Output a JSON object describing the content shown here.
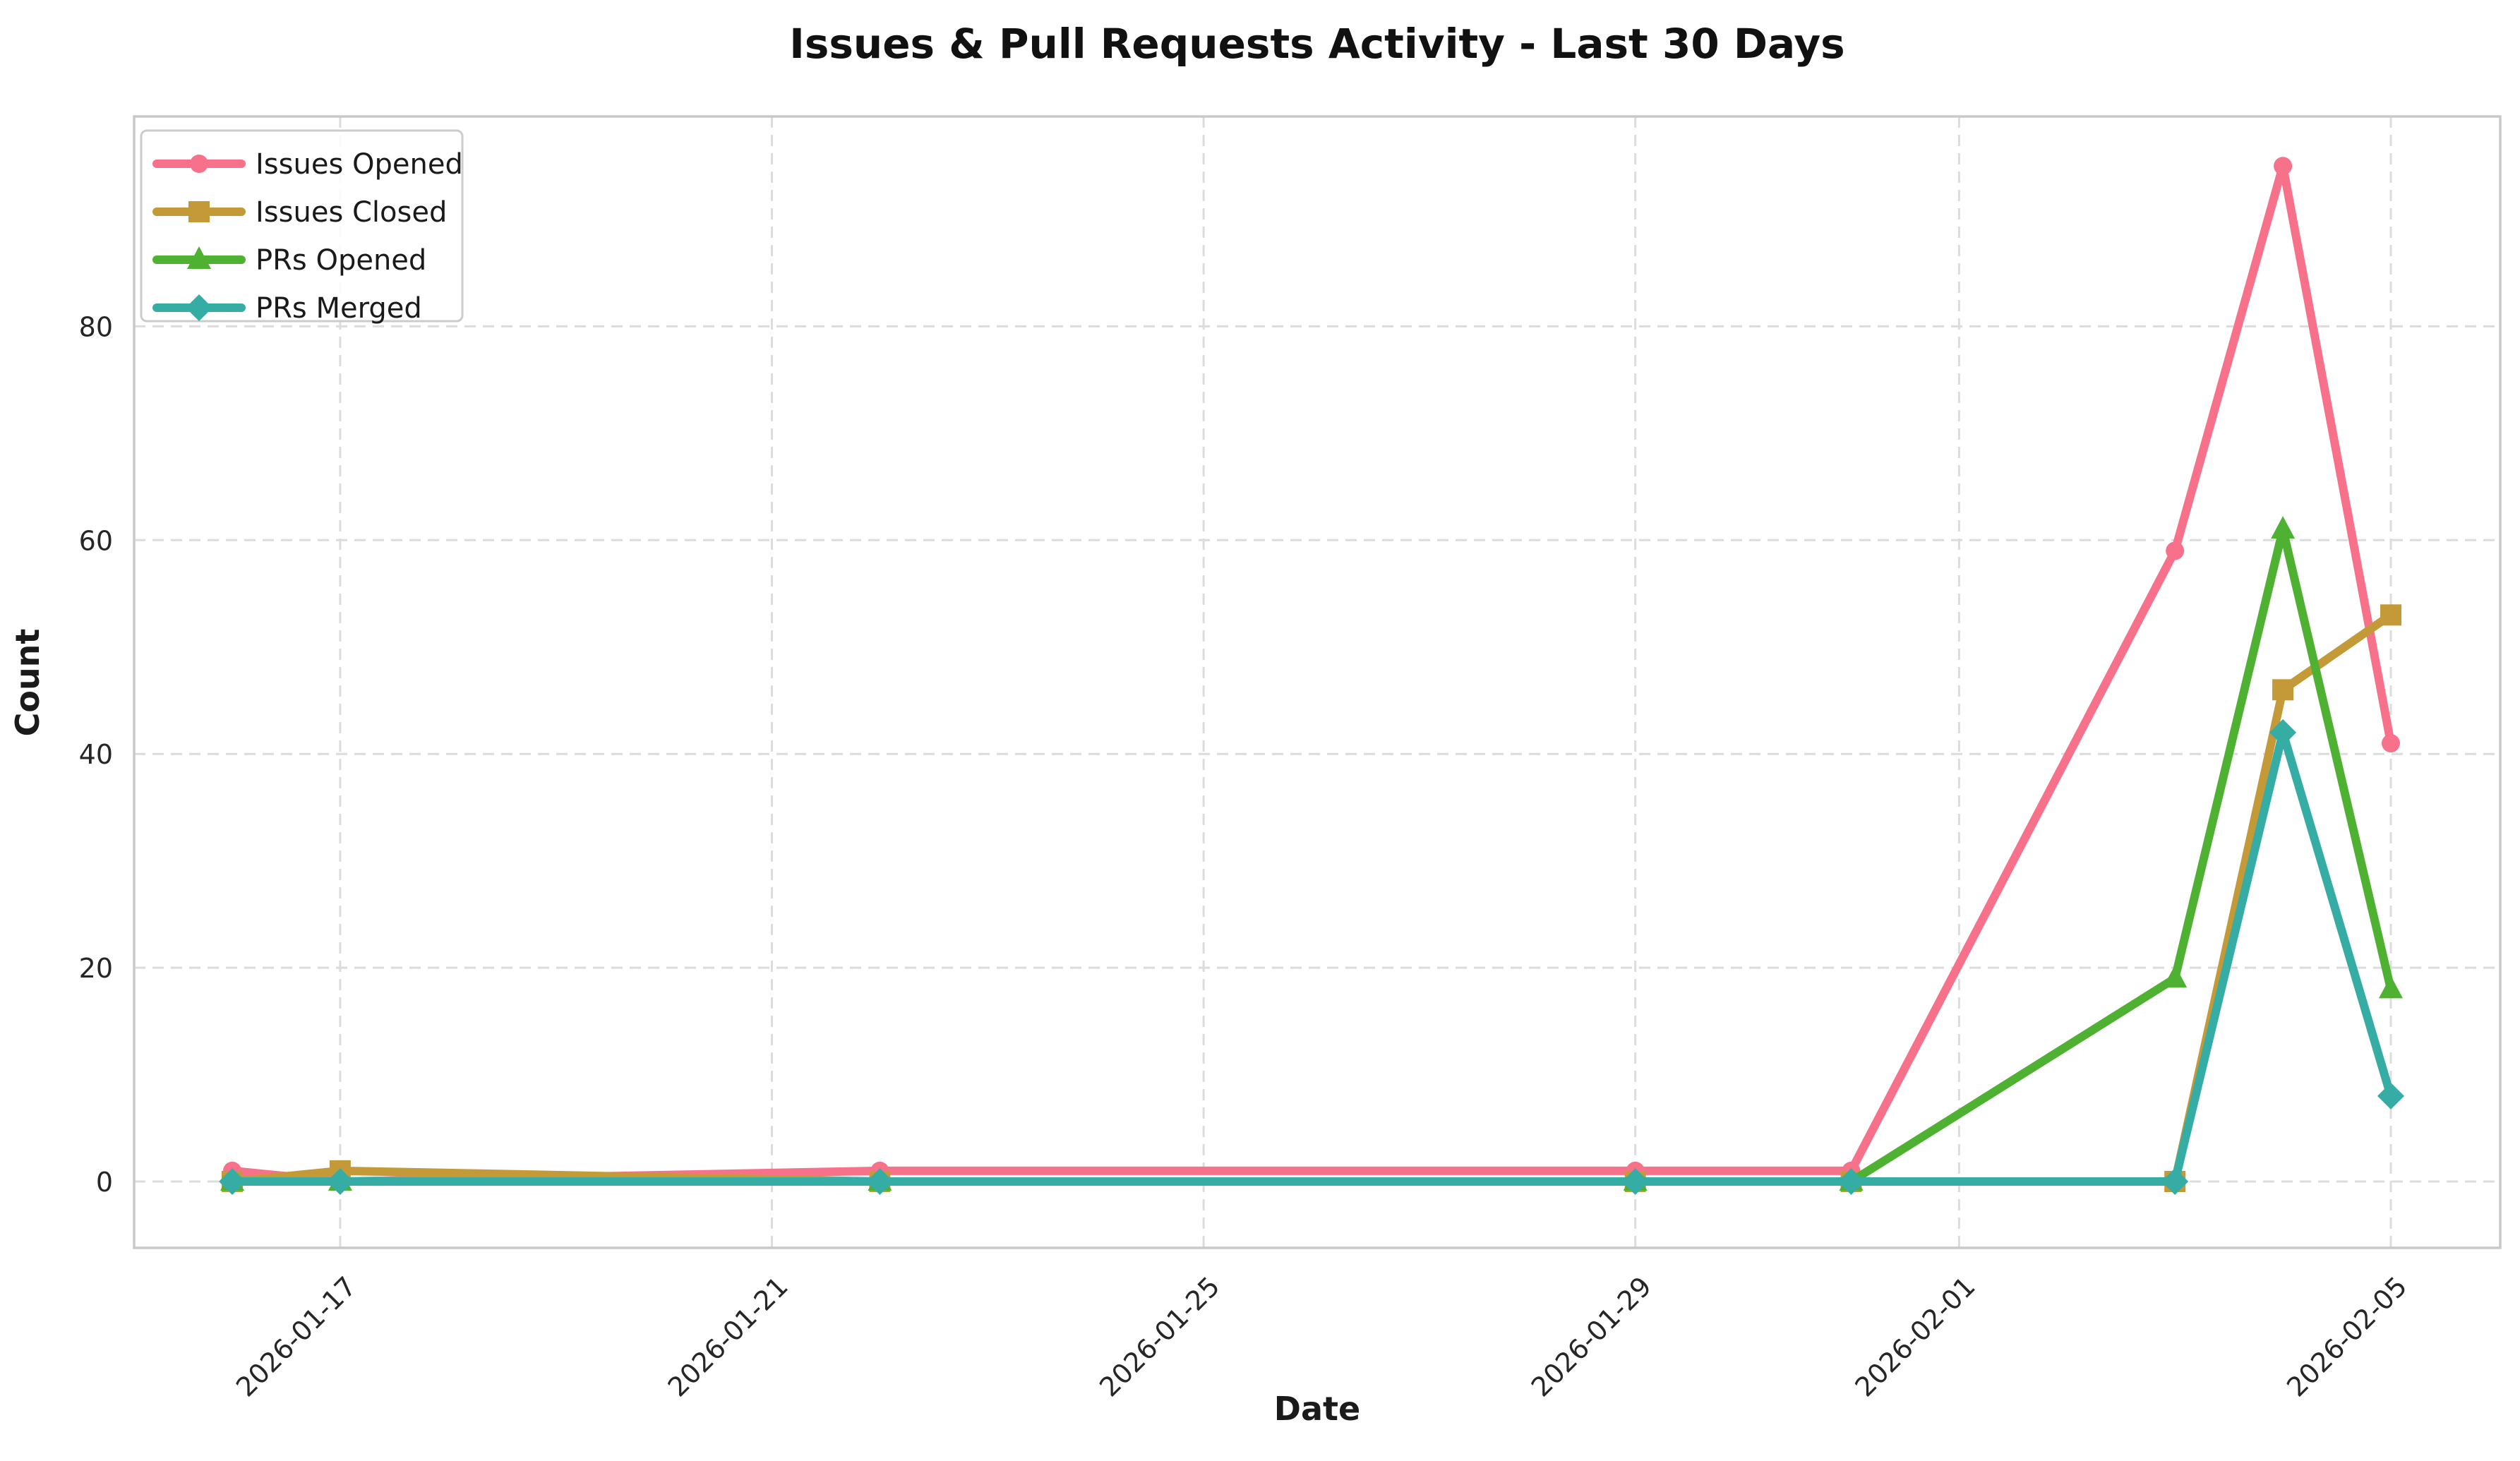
{
  "chart_data": {
    "type": "line",
    "title": "Issues & Pull Requests Activity - Last 30 Days",
    "xlabel": "Date",
    "ylabel": "Count",
    "x": [
      "2026-01-16",
      "2026-01-17",
      "2026-01-22",
      "2026-01-29",
      "2026-01-31",
      "2026-02-03",
      "2026-02-04",
      "2026-02-05"
    ],
    "x_tick_labels": [
      "2026-01-17",
      "2026-01-21",
      "2026-01-25",
      "2026-01-29",
      "2026-02-01",
      "2026-02-05"
    ],
    "y_ticks": [
      0,
      20,
      40,
      60,
      80
    ],
    "ylim": [
      -4.75,
      99.75
    ],
    "grid": true,
    "legend_position": "upper-left",
    "series": [
      {
        "name": "Issues Opened",
        "color": "#f7718a",
        "marker": "circle",
        "values": [
          1,
          0,
          1,
          1,
          1,
          59,
          95,
          41
        ]
      },
      {
        "name": "Issues Closed",
        "color": "#c49a39",
        "marker": "square",
        "values": [
          0,
          1,
          0,
          0,
          0,
          0,
          46,
          53
        ]
      },
      {
        "name": "PRs Opened",
        "color": "#4fb131",
        "marker": "triangle",
        "values": [
          0,
          0,
          0,
          0,
          0,
          19,
          61,
          18
        ]
      },
      {
        "name": "PRs Merged",
        "color": "#36ada4",
        "marker": "diamond",
        "values": [
          0,
          0,
          0,
          0,
          0,
          0,
          42,
          8
        ]
      }
    ]
  }
}
